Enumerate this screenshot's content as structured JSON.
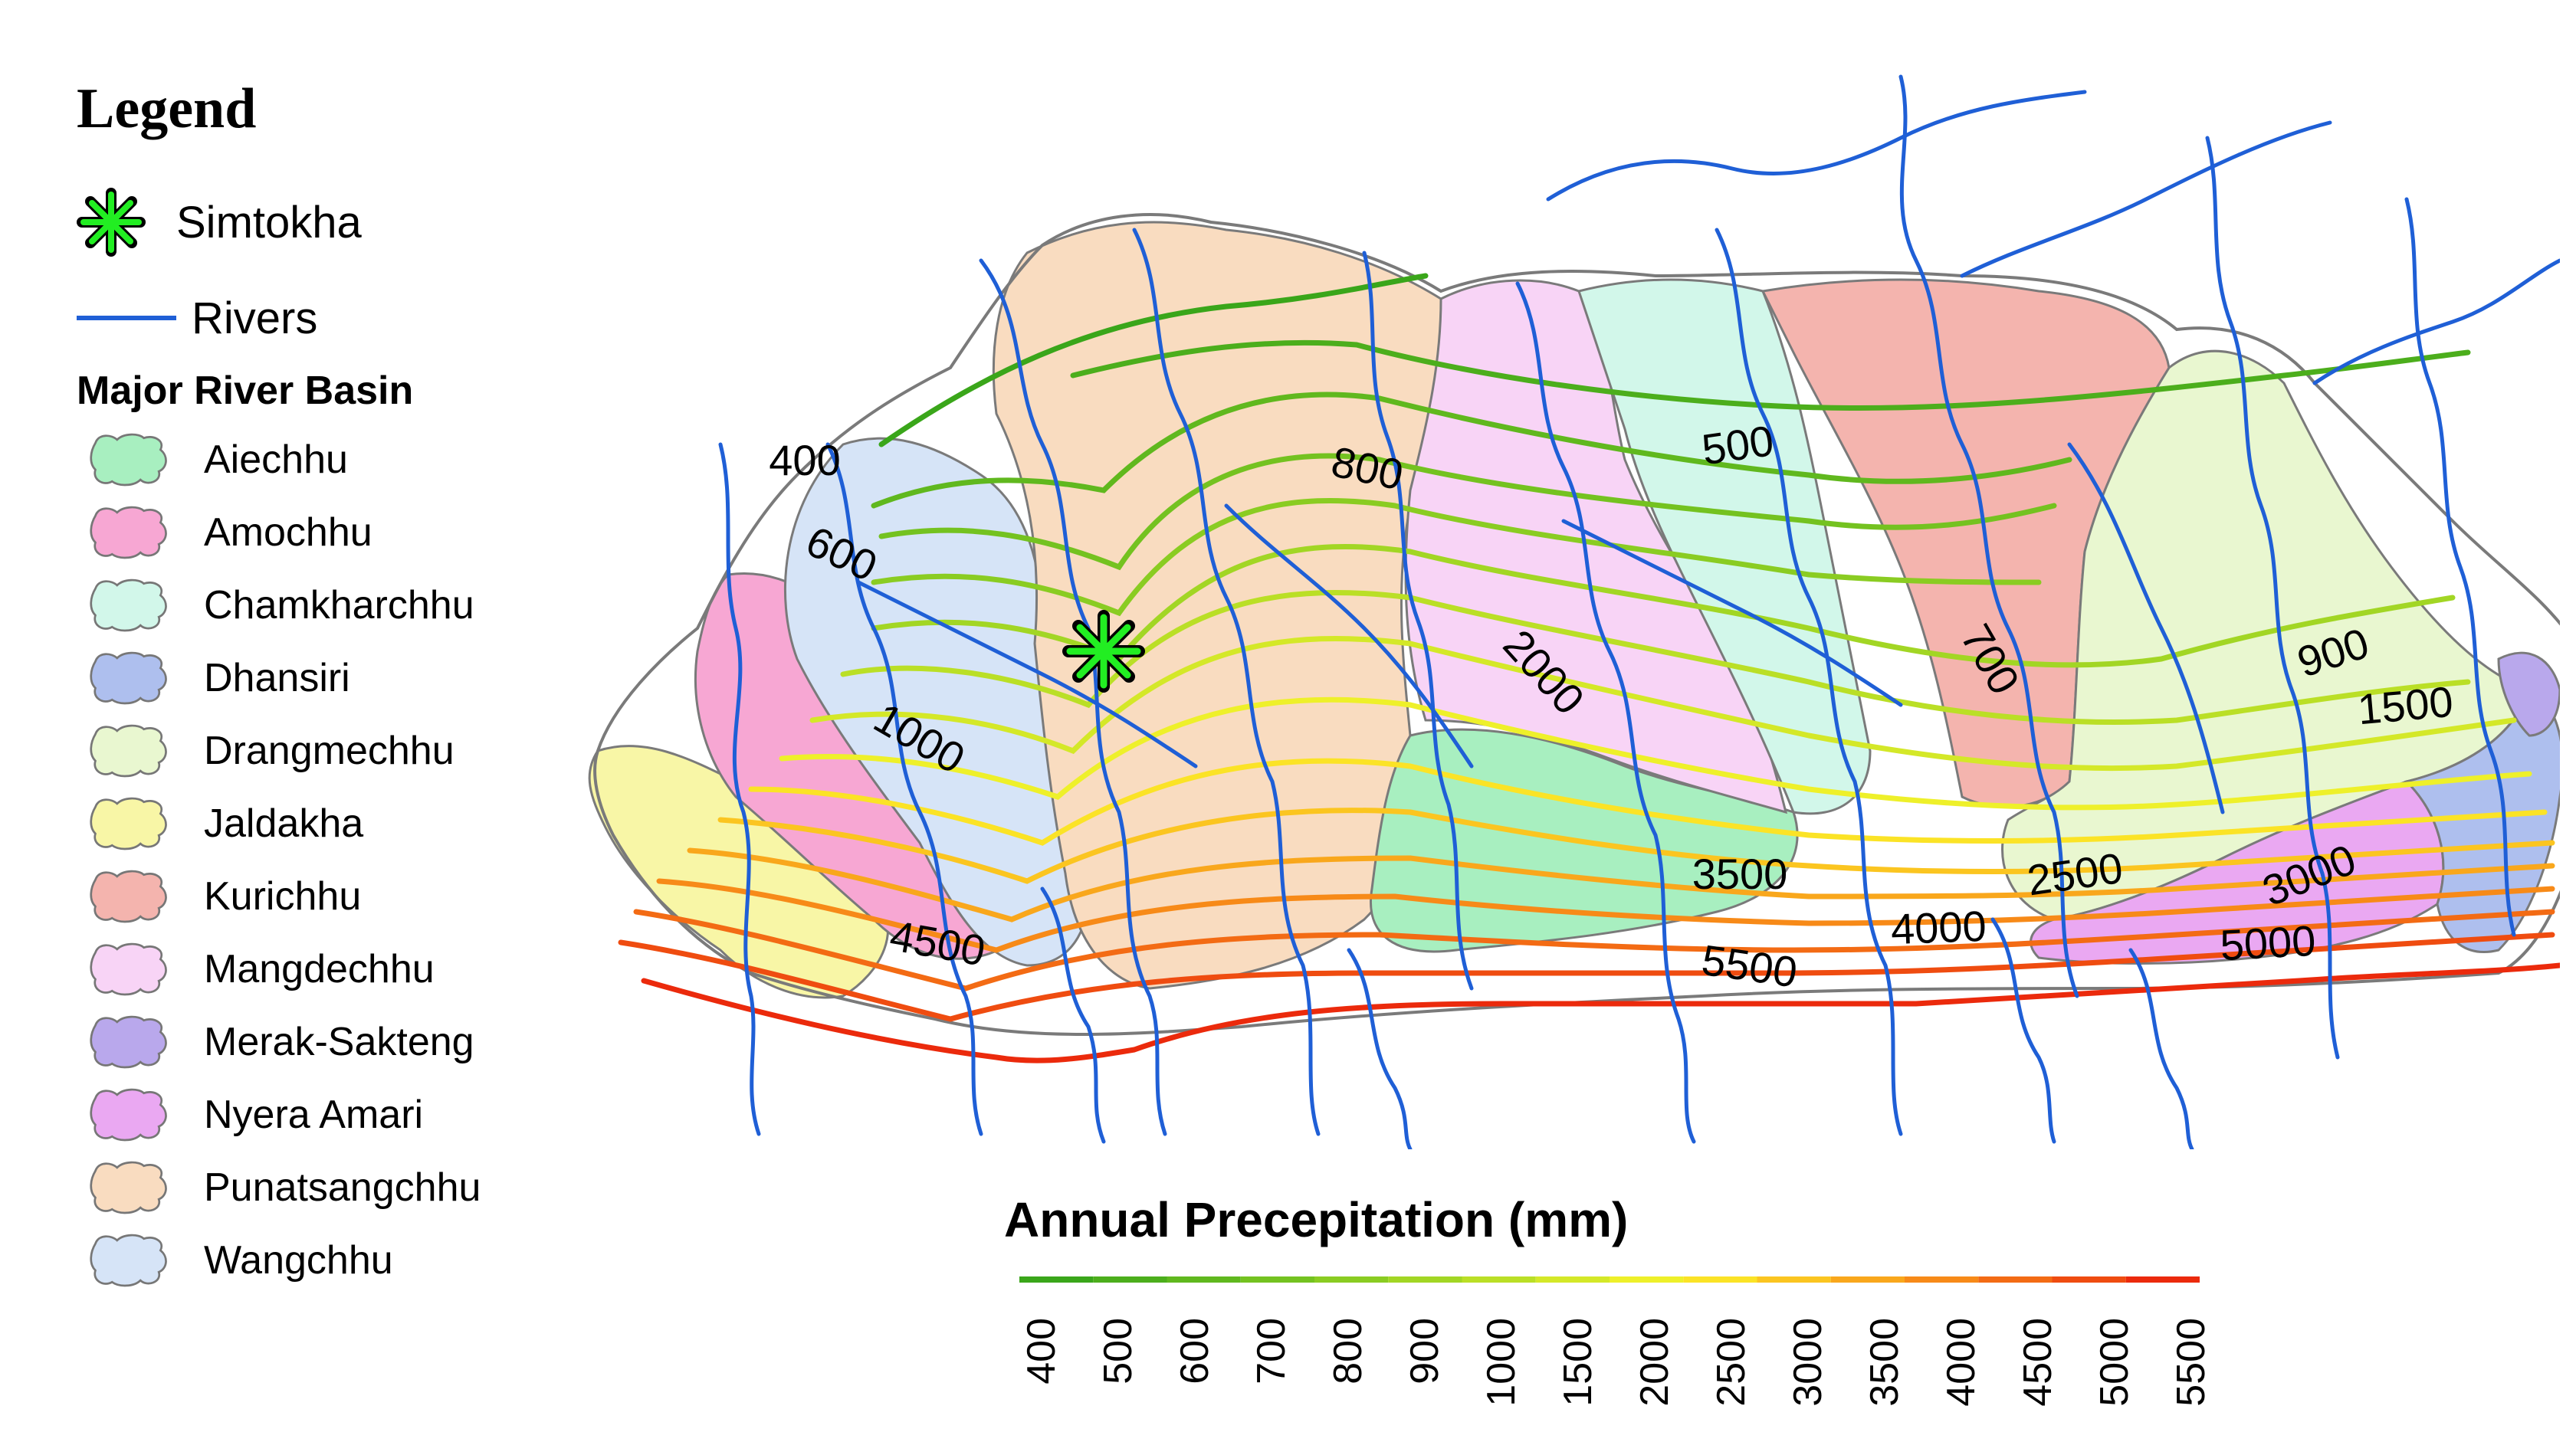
{
  "legend": {
    "title": "Legend",
    "station": {
      "label": "Simtokha",
      "icon": "asterisk-station-icon",
      "color": "#22ee22"
    },
    "rivers": {
      "label": "Rivers",
      "color": "#1f5fd6"
    },
    "basins_title": "Major River Basin",
    "basins": [
      {
        "name": "Aiechhu",
        "color": "#a8efc0"
      },
      {
        "name": "Amochhu",
        "color": "#f7a7d3"
      },
      {
        "name": "Chamkharchhu",
        "color": "#d2f7ea"
      },
      {
        "name": "Dhansiri",
        "color": "#aebfee"
      },
      {
        "name": "Drangmechhu",
        "color": "#e9f7d0"
      },
      {
        "name": "Jaldakha",
        "color": "#f8f6a6"
      },
      {
        "name": "Kurichhu",
        "color": "#f4b4ae"
      },
      {
        "name": "Mangdechhu",
        "color": "#f8d4f6"
      },
      {
        "name": "Merak-Sakteng",
        "color": "#b9a8ec"
      },
      {
        "name": "Nyera Amari",
        "color": "#eaa8f2"
      },
      {
        "name": "Punatsangchhu",
        "color": "#f9dcc0"
      },
      {
        "name": "Wangchhu",
        "color": "#d6e4f7"
      }
    ]
  },
  "scale": {
    "title": "Annual Precepitation (mm)",
    "ticks": [
      "400",
      "500",
      "600",
      "700",
      "800",
      "900",
      "1000",
      "1500",
      "2000",
      "2500",
      "3000",
      "3500",
      "4000",
      "4500",
      "5000",
      "5500"
    ],
    "colors": [
      "#3aa61a",
      "#4cae1c",
      "#60b81e",
      "#74c220",
      "#8acc22",
      "#a2d624",
      "#badf26",
      "#d4e828",
      "#eef02a",
      "#fbe326",
      "#fbc520",
      "#f9a71c",
      "#f78a18",
      "#f36b14",
      "#ef4c10",
      "#eb2a0c"
    ]
  },
  "contour_labels": [
    "400",
    "600",
    "800",
    "500",
    "700",
    "900",
    "1000",
    "2000",
    "1500",
    "3500",
    "2500",
    "3000",
    "4000",
    "4500",
    "5000",
    "5500"
  ]
}
